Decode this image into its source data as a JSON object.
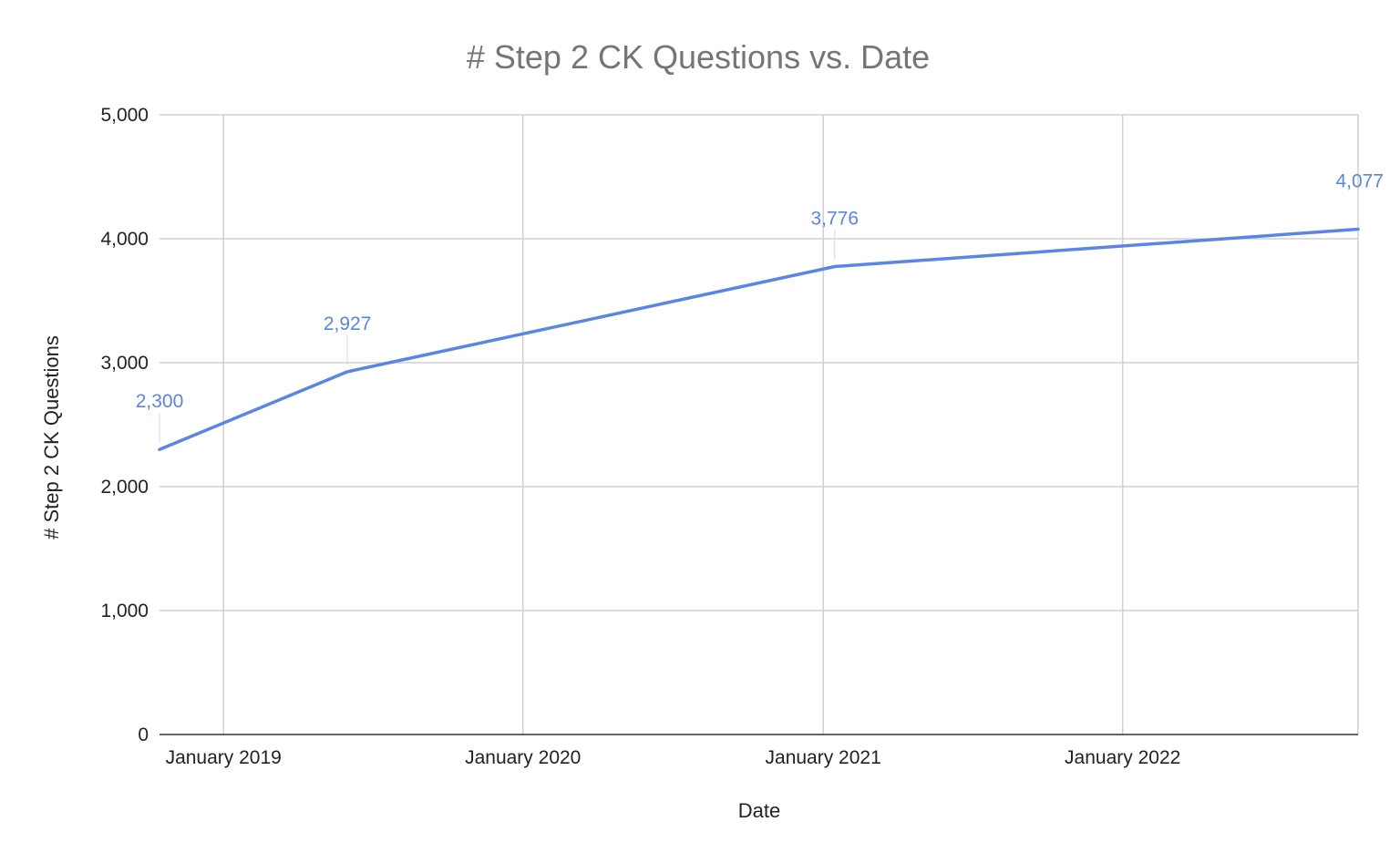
{
  "chart_data": {
    "type": "line",
    "title": "# Step 2 CK Questions vs. Date",
    "xlabel": "Date",
    "ylabel": "# Step 2 CK Questions",
    "x_ticks": [
      "January 2019",
      "January 2020",
      "January 2021",
      "January 2022"
    ],
    "y_ticks": [
      "0",
      "1,000",
      "2,000",
      "3,000",
      "4,000",
      "5,000"
    ],
    "ylim": [
      0,
      5000
    ],
    "xlim": [
      "2018-10-15",
      "2022-10-15"
    ],
    "grid": true,
    "legend": "none",
    "series": [
      {
        "color": "#5b85e4",
        "points": [
          {
            "x": "2018-10-15",
            "y": 2300,
            "label": "2,300"
          },
          {
            "x": "2019-06-01",
            "y": 2927,
            "label": "2,927"
          },
          {
            "x": "2021-01-15",
            "y": 3776,
            "label": "3,776"
          },
          {
            "x": "2022-10-15",
            "y": 4077,
            "label": "4,077"
          }
        ]
      }
    ]
  }
}
